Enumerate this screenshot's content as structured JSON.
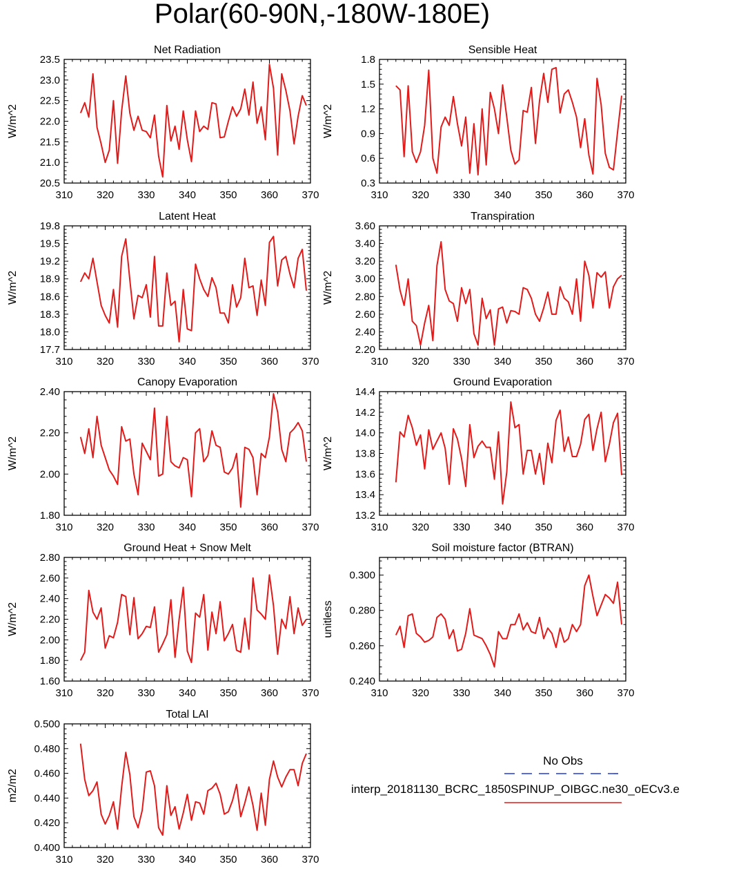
{
  "page_title": "Polar(60-90N,-180W-180E)",
  "legend": {
    "obs_label": "No Obs",
    "case_label": "interp_20181130_BCRC_1850SPINUP_OIBGC.ne30_oECv3.e",
    "obs_color": "#1f3bd6",
    "case_color": "#e11a1a"
  },
  "chart_data": [
    {
      "type": "line",
      "title": "Net Radiation",
      "ylabel": "W/m^2",
      "xlim": [
        310,
        370
      ],
      "ylim": [
        20.5,
        23.5
      ],
      "xticks": [
        310,
        320,
        330,
        340,
        350,
        360,
        370
      ],
      "yticks": [
        "20.5",
        "21.0",
        "21.5",
        "22.0",
        "22.5",
        "23.0",
        "23.5"
      ],
      "x_start": 314,
      "series": [
        {
          "name": "interp_20181130_BCRC_1850SPINUP_OIBGC.ne30_oECv3.e",
          "color": "#e11a1a",
          "values": [
            22.2,
            22.45,
            22.1,
            23.15,
            21.85,
            21.45,
            21.0,
            21.3,
            22.5,
            20.98,
            22.25,
            23.1,
            22.2,
            21.78,
            22.12,
            21.78,
            21.75,
            21.6,
            22.15,
            21.15,
            20.65,
            22.38,
            21.52,
            21.88,
            21.32,
            22.25,
            21.55,
            21.02,
            22.25,
            21.75,
            21.88,
            21.8,
            22.45,
            22.42,
            21.6,
            21.62,
            22.0,
            22.35,
            22.12,
            22.3,
            22.78,
            22.15,
            22.95,
            21.95,
            22.35,
            21.55,
            23.38,
            22.8,
            21.18,
            23.15,
            22.75,
            22.25,
            21.45,
            22.12,
            22.62,
            22.38
          ]
        }
      ]
    },
    {
      "type": "line",
      "title": "Sensible Heat",
      "ylabel": "W/m^2",
      "xlim": [
        310,
        370
      ],
      "ylim": [
        0.3,
        1.8
      ],
      "xticks": [
        310,
        320,
        330,
        340,
        350,
        360,
        370
      ],
      "yticks": [
        "0.3",
        "0.6",
        "0.9",
        "1.2",
        "1.5",
        "1.8"
      ],
      "x_start": 314,
      "series": [
        {
          "name": "interp_20181130_BCRC_1850SPINUP_OIBGC.ne30_oECv3.e",
          "color": "#e11a1a",
          "values": [
            1.48,
            1.43,
            0.62,
            1.48,
            0.68,
            0.55,
            0.68,
            1.0,
            1.67,
            0.6,
            0.42,
            0.98,
            1.1,
            1.0,
            1.35,
            1.02,
            0.75,
            1.1,
            0.42,
            1.02,
            0.4,
            1.2,
            0.52,
            1.4,
            1.2,
            0.9,
            1.49,
            1.1,
            0.7,
            0.53,
            0.58,
            1.18,
            1.16,
            1.46,
            0.78,
            1.3,
            1.63,
            1.28,
            1.68,
            1.7,
            1.15,
            1.38,
            1.43,
            1.28,
            1.1,
            0.73,
            1.08,
            0.64,
            0.41,
            1.57,
            1.25,
            0.66,
            0.49,
            0.46,
            0.92,
            1.36
          ]
        }
      ]
    },
    {
      "type": "line",
      "title": "Latent Heat",
      "ylabel": "W/m^2",
      "xlim": [
        310,
        370
      ],
      "ylim": [
        17.7,
        19.8
      ],
      "xticks": [
        310,
        320,
        330,
        340,
        350,
        360,
        370
      ],
      "yticks": [
        "17.7",
        "18.0",
        "18.3",
        "18.6",
        "18.9",
        "19.2",
        "19.5",
        "19.8"
      ],
      "x_start": 314,
      "series": [
        {
          "name": "interp_20181130_BCRC_1850SPINUP_OIBGC.ne30_oECv3.e",
          "color": "#e11a1a",
          "values": [
            18.85,
            19.0,
            18.9,
            19.25,
            18.85,
            18.45,
            18.28,
            18.15,
            18.72,
            18.08,
            19.28,
            19.58,
            18.88,
            18.22,
            18.62,
            18.58,
            18.8,
            18.25,
            19.28,
            18.1,
            18.1,
            19.0,
            18.45,
            18.52,
            17.83,
            18.72,
            18.05,
            18.02,
            19.15,
            18.9,
            18.72,
            18.6,
            18.92,
            18.75,
            18.32,
            18.32,
            18.15,
            18.8,
            18.42,
            18.58,
            19.25,
            18.75,
            18.78,
            18.28,
            18.88,
            18.45,
            19.52,
            19.62,
            18.78,
            19.22,
            19.28,
            18.98,
            18.75,
            19.25,
            19.4,
            18.7
          ]
        }
      ]
    },
    {
      "type": "line",
      "title": "Transpiration",
      "ylabel": "W/m^2",
      "xlim": [
        310,
        370
      ],
      "ylim": [
        2.2,
        3.6
      ],
      "xticks": [
        310,
        320,
        330,
        340,
        350,
        360,
        370
      ],
      "yticks": [
        "2.20",
        "2.40",
        "2.60",
        "2.80",
        "3.00",
        "3.20",
        "3.40",
        "3.60"
      ],
      "x_start": 314,
      "series": [
        {
          "name": "interp_20181130_BCRC_1850SPINUP_OIBGC.ne30_oECv3.e",
          "color": "#e11a1a",
          "values": [
            3.16,
            2.87,
            2.7,
            3.0,
            2.52,
            2.47,
            2.25,
            2.5,
            2.7,
            2.3,
            3.15,
            3.42,
            2.88,
            2.75,
            2.72,
            2.52,
            2.9,
            2.72,
            2.88,
            2.38,
            2.25,
            2.78,
            2.55,
            2.65,
            2.25,
            2.66,
            2.68,
            2.5,
            2.64,
            2.63,
            2.6,
            2.9,
            2.88,
            2.78,
            2.6,
            2.52,
            2.67,
            2.85,
            2.6,
            2.6,
            2.91,
            2.78,
            2.74,
            2.6,
            3.0,
            2.52,
            3.2,
            3.04,
            2.67,
            3.07,
            3.02,
            3.08,
            2.67,
            2.91,
            3.0,
            3.04
          ]
        }
      ]
    },
    {
      "type": "line",
      "title": "Canopy Evaporation",
      "ylabel": "W/m^2",
      "xlim": [
        310,
        370
      ],
      "ylim": [
        1.8,
        2.4
      ],
      "xticks": [
        310,
        320,
        330,
        340,
        350,
        360,
        370
      ],
      "yticks": [
        "1.80",
        "2.00",
        "2.20",
        "2.40"
      ],
      "x_start": 314,
      "series": [
        {
          "name": "interp_20181130_BCRC_1850SPINUP_OIBGC.ne30_oECv3.e",
          "color": "#e11a1a",
          "values": [
            2.18,
            2.1,
            2.22,
            2.08,
            2.28,
            2.14,
            2.08,
            2.02,
            1.99,
            1.95,
            2.23,
            2.16,
            2.17,
            2.0,
            1.9,
            2.15,
            2.11,
            2.07,
            2.32,
            1.99,
            2.0,
            2.28,
            2.06,
            2.04,
            2.03,
            2.08,
            2.07,
            1.89,
            2.2,
            2.22,
            2.06,
            2.09,
            2.21,
            2.14,
            2.13,
            2.01,
            2.0,
            2.03,
            2.1,
            1.84,
            2.13,
            2.12,
            2.08,
            1.9,
            2.1,
            2.08,
            2.18,
            2.39,
            2.3,
            2.12,
            2.06,
            2.2,
            2.22,
            2.25,
            2.21,
            2.06
          ]
        }
      ]
    },
    {
      "type": "line",
      "title": "Ground Evaporation",
      "ylabel": "W/m^2",
      "xlim": [
        310,
        370
      ],
      "ylim": [
        13.2,
        14.4
      ],
      "xticks": [
        310,
        320,
        330,
        340,
        350,
        360,
        370
      ],
      "yticks": [
        "13.2",
        "13.4",
        "13.6",
        "13.8",
        "14.0",
        "14.2",
        "14.4"
      ],
      "x_start": 314,
      "series": [
        {
          "name": "interp_20181130_BCRC_1850SPINUP_OIBGC.ne30_oECv3.e",
          "color": "#e11a1a",
          "values": [
            13.52,
            14.01,
            13.96,
            14.17,
            14.05,
            13.88,
            13.98,
            13.65,
            14.03,
            13.84,
            13.92,
            14.0,
            13.85,
            13.5,
            14.04,
            13.94,
            13.75,
            13.48,
            14.08,
            13.76,
            13.87,
            13.92,
            13.86,
            13.86,
            13.55,
            14.01,
            13.31,
            13.62,
            14.3,
            14.05,
            14.08,
            13.6,
            13.83,
            13.83,
            13.6,
            13.8,
            13.5,
            13.9,
            13.71,
            14.12,
            14.22,
            13.82,
            13.96,
            13.77,
            13.77,
            13.89,
            14.13,
            14.18,
            13.83,
            14.04,
            14.2,
            13.72,
            13.89,
            14.1,
            14.19,
            13.59
          ]
        }
      ]
    },
    {
      "type": "line",
      "title": "Ground Heat + Snow Melt",
      "ylabel": "W/m^2",
      "xlim": [
        310,
        370
      ],
      "ylim": [
        1.6,
        2.8
      ],
      "xticks": [
        310,
        320,
        330,
        340,
        350,
        360,
        370
      ],
      "yticks": [
        "1.60",
        "1.80",
        "2.00",
        "2.20",
        "2.40",
        "2.60",
        "2.80"
      ],
      "x_start": 314,
      "series": [
        {
          "name": "interp_20181130_BCRC_1850SPINUP_OIBGC.ne30_oECv3.e",
          "color": "#e11a1a",
          "values": [
            1.8,
            1.88,
            2.48,
            2.27,
            2.2,
            2.31,
            1.92,
            2.04,
            2.02,
            2.17,
            2.44,
            2.42,
            2.05,
            2.41,
            2.01,
            2.06,
            2.13,
            2.12,
            2.32,
            1.88,
            1.96,
            2.05,
            2.39,
            1.83,
            2.2,
            2.51,
            1.89,
            1.78,
            2.26,
            2.22,
            2.44,
            1.9,
            2.27,
            2.06,
            2.37,
            1.99,
            2.06,
            2.15,
            1.9,
            1.88,
            2.21,
            1.91,
            2.6,
            2.29,
            2.25,
            2.2,
            2.63,
            2.33,
            1.86,
            2.2,
            2.11,
            2.42,
            2.06,
            2.31,
            2.14,
            2.2
          ]
        }
      ]
    },
    {
      "type": "line",
      "title": "Soil moisture factor (BTRAN)",
      "ylabel": "unitless",
      "xlim": [
        310,
        370
      ],
      "ylim": [
        0.24,
        0.31
      ],
      "xticks": [
        310,
        320,
        330,
        340,
        350,
        360,
        370
      ],
      "yticks": [
        "0.240",
        "0.260",
        "0.280",
        "0.300"
      ],
      "x_start": 314,
      "series": [
        {
          "name": "interp_20181130_BCRC_1850SPINUP_OIBGC.ne30_oECv3.e",
          "color": "#e11a1a",
          "values": [
            0.266,
            0.271,
            0.259,
            0.277,
            0.278,
            0.267,
            0.265,
            0.262,
            0.263,
            0.265,
            0.276,
            0.278,
            0.275,
            0.264,
            0.269,
            0.257,
            0.258,
            0.267,
            0.281,
            0.266,
            0.265,
            0.264,
            0.26,
            0.255,
            0.248,
            0.268,
            0.264,
            0.264,
            0.272,
            0.272,
            0.278,
            0.269,
            0.273,
            0.268,
            0.267,
            0.276,
            0.264,
            0.27,
            0.267,
            0.259,
            0.27,
            0.262,
            0.264,
            0.272,
            0.268,
            0.272,
            0.294,
            0.3,
            0.288,
            0.277,
            0.283,
            0.289,
            0.287,
            0.284,
            0.296,
            0.272
          ]
        }
      ]
    },
    {
      "type": "line",
      "title": "Total LAI",
      "ylabel": "m2/m2",
      "xlim": [
        310,
        370
      ],
      "ylim": [
        0.4,
        0.5
      ],
      "xticks": [
        310,
        320,
        330,
        340,
        350,
        360,
        370
      ],
      "yticks": [
        "0.400",
        "0.420",
        "0.440",
        "0.460",
        "0.480",
        "0.500"
      ],
      "x_start": 314,
      "series": [
        {
          "name": "interp_20181130_BCRC_1850SPINUP_OIBGC.ne30_oECv3.e",
          "color": "#e11a1a",
          "values": [
            0.484,
            0.455,
            0.442,
            0.446,
            0.453,
            0.427,
            0.419,
            0.426,
            0.437,
            0.415,
            0.449,
            0.477,
            0.459,
            0.425,
            0.416,
            0.43,
            0.461,
            0.462,
            0.45,
            0.416,
            0.41,
            0.45,
            0.426,
            0.433,
            0.415,
            0.428,
            0.443,
            0.422,
            0.437,
            0.436,
            0.427,
            0.446,
            0.448,
            0.452,
            0.443,
            0.427,
            0.429,
            0.438,
            0.451,
            0.425,
            0.436,
            0.449,
            0.434,
            0.414,
            0.444,
            0.418,
            0.455,
            0.47,
            0.457,
            0.449,
            0.457,
            0.463,
            0.463,
            0.45,
            0.468,
            0.476
          ]
        }
      ]
    }
  ]
}
